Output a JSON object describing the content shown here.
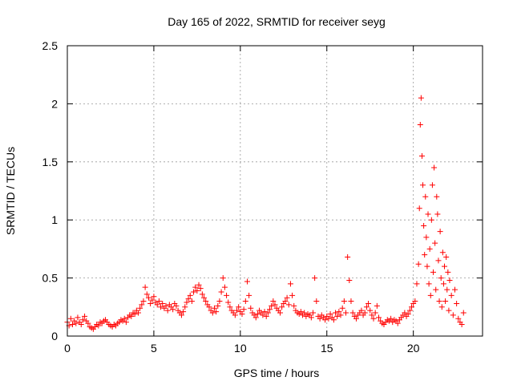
{
  "chart_data": {
    "type": "scatter",
    "title": "Day 165 of 2022, SRMTID for receiver seyg",
    "xlabel": "GPS time / hours",
    "ylabel": "SRMTID / TECUs",
    "xlim": [
      0,
      24
    ],
    "ylim": [
      0,
      2.5
    ],
    "xticks": [
      0,
      5,
      10,
      15,
      20
    ],
    "xtick_labels": [
      "0",
      "5",
      "10",
      "15",
      "20"
    ],
    "yticks": [
      0,
      0.5,
      1,
      1.5,
      2,
      2.5
    ],
    "ytick_labels": [
      "0",
      "0.5",
      "1",
      "1.5",
      "2",
      "2.5"
    ],
    "grid": true,
    "marker": "+",
    "series": [
      {
        "name": "SRMTID",
        "color": "#ff0000",
        "points": [
          [
            0.0,
            0.12
          ],
          [
            0.1,
            0.09
          ],
          [
            0.2,
            0.15
          ],
          [
            0.3,
            0.1
          ],
          [
            0.4,
            0.13
          ],
          [
            0.5,
            0.11
          ],
          [
            0.6,
            0.16
          ],
          [
            0.7,
            0.12
          ],
          [
            0.8,
            0.1
          ],
          [
            0.9,
            0.14
          ],
          [
            1.0,
            0.17
          ],
          [
            1.1,
            0.13
          ],
          [
            1.2,
            0.11
          ],
          [
            1.3,
            0.08
          ],
          [
            1.4,
            0.07
          ],
          [
            1.5,
            0.06
          ],
          [
            1.6,
            0.08
          ],
          [
            1.7,
            0.1
          ],
          [
            1.8,
            0.09
          ],
          [
            1.9,
            0.12
          ],
          [
            2.0,
            0.11
          ],
          [
            2.1,
            0.13
          ],
          [
            2.2,
            0.14
          ],
          [
            2.3,
            0.12
          ],
          [
            2.4,
            0.1
          ],
          [
            2.5,
            0.09
          ],
          [
            2.6,
            0.08
          ],
          [
            2.7,
            0.1
          ],
          [
            2.8,
            0.09
          ],
          [
            2.9,
            0.11
          ],
          [
            3.0,
            0.12
          ],
          [
            3.1,
            0.14
          ],
          [
            3.2,
            0.13
          ],
          [
            3.3,
            0.15
          ],
          [
            3.4,
            0.12
          ],
          [
            3.5,
            0.16
          ],
          [
            3.6,
            0.18
          ],
          [
            3.7,
            0.17
          ],
          [
            3.8,
            0.2
          ],
          [
            3.9,
            0.19
          ],
          [
            4.0,
            0.22
          ],
          [
            4.1,
            0.2
          ],
          [
            4.2,
            0.24
          ],
          [
            4.3,
            0.27
          ],
          [
            4.4,
            0.3
          ],
          [
            4.5,
            0.42
          ],
          [
            4.6,
            0.36
          ],
          [
            4.7,
            0.33
          ],
          [
            4.8,
            0.28
          ],
          [
            4.9,
            0.31
          ],
          [
            5.0,
            0.34
          ],
          [
            5.1,
            0.29
          ],
          [
            5.2,
            0.27
          ],
          [
            5.3,
            0.3
          ],
          [
            5.4,
            0.25
          ],
          [
            5.5,
            0.28
          ],
          [
            5.6,
            0.24
          ],
          [
            5.7,
            0.26
          ],
          [
            5.8,
            0.22
          ],
          [
            5.9,
            0.27
          ],
          [
            6.0,
            0.25
          ],
          [
            6.1,
            0.23
          ],
          [
            6.2,
            0.28
          ],
          [
            6.3,
            0.26
          ],
          [
            6.4,
            0.22
          ],
          [
            6.5,
            0.2
          ],
          [
            6.6,
            0.18
          ],
          [
            6.7,
            0.21
          ],
          [
            6.8,
            0.25
          ],
          [
            6.9,
            0.29
          ],
          [
            7.0,
            0.32
          ],
          [
            7.1,
            0.35
          ],
          [
            7.2,
            0.3
          ],
          [
            7.3,
            0.38
          ],
          [
            7.4,
            0.42
          ],
          [
            7.5,
            0.39
          ],
          [
            7.6,
            0.44
          ],
          [
            7.7,
            0.41
          ],
          [
            7.8,
            0.36
          ],
          [
            7.9,
            0.33
          ],
          [
            8.0,
            0.3
          ],
          [
            8.1,
            0.27
          ],
          [
            8.2,
            0.25
          ],
          [
            8.3,
            0.22
          ],
          [
            8.4,
            0.2
          ],
          [
            8.5,
            0.24
          ],
          [
            8.6,
            0.21
          ],
          [
            8.7,
            0.26
          ],
          [
            8.8,
            0.3
          ],
          [
            8.9,
            0.38
          ],
          [
            9.0,
            0.5
          ],
          [
            9.1,
            0.42
          ],
          [
            9.2,
            0.35
          ],
          [
            9.3,
            0.29
          ],
          [
            9.4,
            0.25
          ],
          [
            9.5,
            0.22
          ],
          [
            9.6,
            0.2
          ],
          [
            9.7,
            0.18
          ],
          [
            9.8,
            0.22
          ],
          [
            9.9,
            0.25
          ],
          [
            10.0,
            0.21
          ],
          [
            10.1,
            0.19
          ],
          [
            10.2,
            0.23
          ],
          [
            10.3,
            0.3
          ],
          [
            10.4,
            0.47
          ],
          [
            10.5,
            0.35
          ],
          [
            10.6,
            0.24
          ],
          [
            10.7,
            0.2
          ],
          [
            10.8,
            0.18
          ],
          [
            10.9,
            0.16
          ],
          [
            11.0,
            0.19
          ],
          [
            11.1,
            0.22
          ],
          [
            11.2,
            0.2
          ],
          [
            11.3,
            0.18
          ],
          [
            11.4,
            0.21
          ],
          [
            11.5,
            0.17
          ],
          [
            11.6,
            0.2
          ],
          [
            11.7,
            0.23
          ],
          [
            11.8,
            0.26
          ],
          [
            11.9,
            0.3
          ],
          [
            12.0,
            0.27
          ],
          [
            12.1,
            0.24
          ],
          [
            12.2,
            0.22
          ],
          [
            12.3,
            0.2
          ],
          [
            12.4,
            0.25
          ],
          [
            12.5,
            0.28
          ],
          [
            12.6,
            0.3
          ],
          [
            12.7,
            0.33
          ],
          [
            12.8,
            0.27
          ],
          [
            12.9,
            0.45
          ],
          [
            13.0,
            0.35
          ],
          [
            13.1,
            0.26
          ],
          [
            13.2,
            0.22
          ],
          [
            13.3,
            0.2
          ],
          [
            13.4,
            0.19
          ],
          [
            13.5,
            0.21
          ],
          [
            13.6,
            0.18
          ],
          [
            13.7,
            0.2
          ],
          [
            13.8,
            0.17
          ],
          [
            13.9,
            0.19
          ],
          [
            14.0,
            0.18
          ],
          [
            14.1,
            0.16
          ],
          [
            14.2,
            0.2
          ],
          [
            14.3,
            0.5
          ],
          [
            14.4,
            0.3
          ],
          [
            14.5,
            0.17
          ],
          [
            14.6,
            0.15
          ],
          [
            14.7,
            0.18
          ],
          [
            14.8,
            0.16
          ],
          [
            14.9,
            0.14
          ],
          [
            15.0,
            0.17
          ],
          [
            15.1,
            0.15
          ],
          [
            15.2,
            0.19
          ],
          [
            15.3,
            0.16
          ],
          [
            15.4,
            0.14
          ],
          [
            15.5,
            0.2
          ],
          [
            15.6,
            0.17
          ],
          [
            15.7,
            0.21
          ],
          [
            15.8,
            0.18
          ],
          [
            15.9,
            0.24
          ],
          [
            16.0,
            0.3
          ],
          [
            16.1,
            0.2
          ],
          [
            16.2,
            0.68
          ],
          [
            16.3,
            0.48
          ],
          [
            16.4,
            0.3
          ],
          [
            16.5,
            0.2
          ],
          [
            16.6,
            0.17
          ],
          [
            16.7,
            0.15
          ],
          [
            16.8,
            0.18
          ],
          [
            16.9,
            0.2
          ],
          [
            17.0,
            0.22
          ],
          [
            17.1,
            0.18
          ],
          [
            17.2,
            0.2
          ],
          [
            17.3,
            0.25
          ],
          [
            17.4,
            0.28
          ],
          [
            17.5,
            0.22
          ],
          [
            17.6,
            0.18
          ],
          [
            17.7,
            0.15
          ],
          [
            17.8,
            0.2
          ],
          [
            17.9,
            0.26
          ],
          [
            18.0,
            0.16
          ],
          [
            18.1,
            0.13
          ],
          [
            18.2,
            0.11
          ],
          [
            18.3,
            0.1
          ],
          [
            18.4,
            0.12
          ],
          [
            18.5,
            0.14
          ],
          [
            18.6,
            0.13
          ],
          [
            18.7,
            0.15
          ],
          [
            18.8,
            0.12
          ],
          [
            18.9,
            0.14
          ],
          [
            19.0,
            0.13
          ],
          [
            19.1,
            0.11
          ],
          [
            19.2,
            0.14
          ],
          [
            19.3,
            0.16
          ],
          [
            19.4,
            0.18
          ],
          [
            19.5,
            0.2
          ],
          [
            19.6,
            0.17
          ],
          [
            19.7,
            0.19
          ],
          [
            19.8,
            0.22
          ],
          [
            19.9,
            0.25
          ],
          [
            20.0,
            0.28
          ],
          [
            20.1,
            0.3
          ],
          [
            20.2,
            0.45
          ],
          [
            20.3,
            0.62
          ],
          [
            20.35,
            1.1
          ],
          [
            20.4,
            1.82
          ],
          [
            20.45,
            2.05
          ],
          [
            20.5,
            1.55
          ],
          [
            20.55,
            1.3
          ],
          [
            20.6,
            0.95
          ],
          [
            20.65,
            0.7
          ],
          [
            20.7,
            1.2
          ],
          [
            20.75,
            0.85
          ],
          [
            20.8,
            0.6
          ],
          [
            20.85,
            1.05
          ],
          [
            20.9,
            0.45
          ],
          [
            20.95,
            0.75
          ],
          [
            21.0,
            0.35
          ],
          [
            21.05,
            1.0
          ],
          [
            21.1,
            1.3
          ],
          [
            21.15,
            0.55
          ],
          [
            21.2,
            1.45
          ],
          [
            21.25,
            0.8
          ],
          [
            21.3,
            0.4
          ],
          [
            21.35,
            1.2
          ],
          [
            21.4,
            1.05
          ],
          [
            21.45,
            0.65
          ],
          [
            21.5,
            0.3
          ],
          [
            21.55,
            0.9
          ],
          [
            21.6,
            0.5
          ],
          [
            21.65,
            0.25
          ],
          [
            21.7,
            0.72
          ],
          [
            21.75,
            0.45
          ],
          [
            21.8,
            0.6
          ],
          [
            21.85,
            0.3
          ],
          [
            21.9,
            0.68
          ],
          [
            21.95,
            0.4
          ],
          [
            22.0,
            0.55
          ],
          [
            22.05,
            0.22
          ],
          [
            22.1,
            0.48
          ],
          [
            22.2,
            0.35
          ],
          [
            22.3,
            0.18
          ],
          [
            22.4,
            0.4
          ],
          [
            22.5,
            0.28
          ],
          [
            22.6,
            0.15
          ],
          [
            22.7,
            0.12
          ],
          [
            22.8,
            0.1
          ],
          [
            22.9,
            0.2
          ]
        ]
      }
    ]
  }
}
